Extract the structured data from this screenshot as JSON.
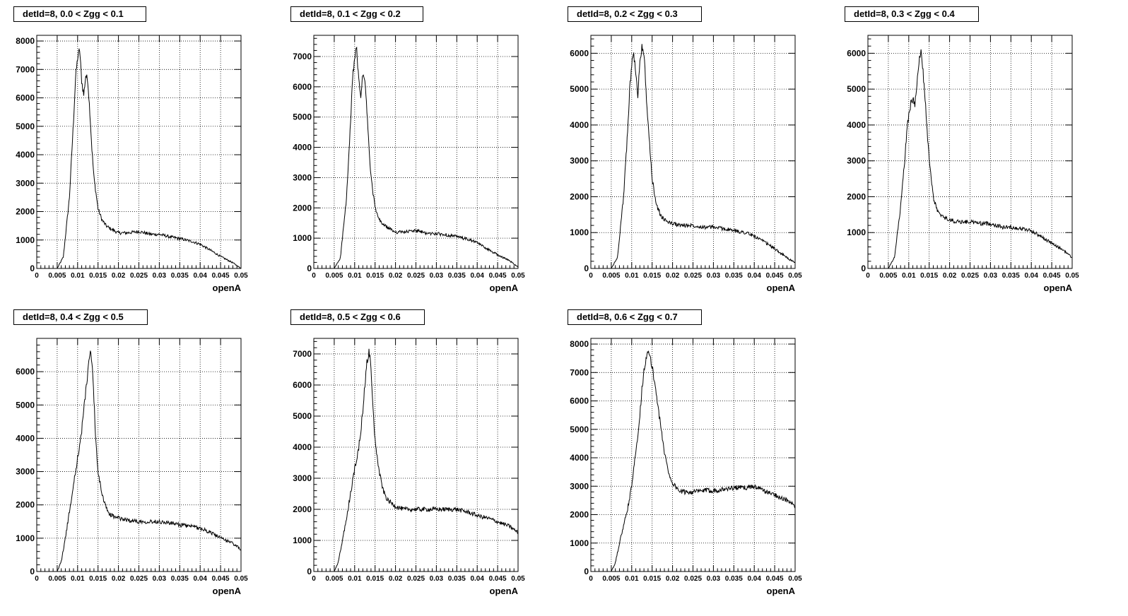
{
  "chart_data": [
    {
      "type": "line",
      "title": "detId=8, 0.0 < Zgg < 0.1",
      "xlabel": "openA",
      "xlim": [
        0,
        0.05
      ],
      "ylim": [
        0,
        8200
      ],
      "xticks": [
        "0",
        "0.005",
        "0.01",
        "0.015",
        "0.02",
        "0.025",
        "0.03",
        "0.035",
        "0.04",
        "0.045",
        "0.05"
      ],
      "yticks": [
        "0",
        "1000",
        "2000",
        "3000",
        "4000",
        "5000",
        "6000",
        "7000",
        "8000"
      ],
      "grid": true,
      "x": [
        0,
        0.005,
        0.0065,
        0.008,
        0.009,
        0.0095,
        0.01,
        0.0105,
        0.011,
        0.0115,
        0.012,
        0.0125,
        0.013,
        0.0135,
        0.014,
        0.015,
        0.016,
        0.017,
        0.018,
        0.02,
        0.022,
        0.025,
        0.028,
        0.03,
        0.033,
        0.035,
        0.038,
        0.04,
        0.043,
        0.045,
        0.048,
        0.05
      ],
      "y": [
        0,
        0,
        400,
        2500,
        5200,
        6700,
        7400,
        7700,
        6600,
        6100,
        6800,
        6600,
        5500,
        4200,
        3200,
        2100,
        1700,
        1500,
        1400,
        1250,
        1250,
        1300,
        1200,
        1200,
        1100,
        1050,
        950,
        850,
        600,
        420,
        200,
        0
      ]
    },
    {
      "type": "line",
      "title": "detId=8, 0.1 < Zgg < 0.2",
      "xlabel": "openA",
      "xlim": [
        0,
        0.05
      ],
      "ylim": [
        0,
        7700
      ],
      "xticks": [
        "0",
        "0.005",
        "0.01",
        "0.015",
        "0.02",
        "0.025",
        "0.03",
        "0.035",
        "0.04",
        "0.045",
        "0.05"
      ],
      "yticks": [
        "0",
        "1000",
        "2000",
        "3000",
        "4000",
        "5000",
        "6000",
        "7000"
      ],
      "grid": true,
      "x": [
        0,
        0.005,
        0.0065,
        0.008,
        0.009,
        0.0095,
        0.01,
        0.0105,
        0.011,
        0.0115,
        0.012,
        0.0125,
        0.013,
        0.0135,
        0.014,
        0.015,
        0.016,
        0.017,
        0.018,
        0.02,
        0.022,
        0.025,
        0.028,
        0.03,
        0.033,
        0.035,
        0.038,
        0.04,
        0.043,
        0.045,
        0.048,
        0.05
      ],
      "y": [
        0,
        0,
        350,
        2300,
        4800,
        6300,
        7000,
        7200,
        6200,
        5700,
        6400,
        6200,
        5200,
        4000,
        3000,
        2000,
        1600,
        1450,
        1350,
        1200,
        1200,
        1250,
        1150,
        1150,
        1100,
        1050,
        950,
        850,
        600,
        450,
        250,
        50
      ]
    },
    {
      "type": "line",
      "title": "detId=8, 0.2 < Zgg < 0.3",
      "xlabel": "openA",
      "xlim": [
        0,
        0.05
      ],
      "ylim": [
        0,
        6500
      ],
      "xticks": [
        "0",
        "0.005",
        "0.01",
        "0.015",
        "0.02",
        "0.025",
        "0.03",
        "0.035",
        "0.04",
        "0.045",
        "0.05"
      ],
      "yticks": [
        "0",
        "1000",
        "2000",
        "3000",
        "4000",
        "5000",
        "6000"
      ],
      "grid": true,
      "x": [
        0,
        0.005,
        0.0065,
        0.008,
        0.009,
        0.0095,
        0.01,
        0.0105,
        0.011,
        0.0115,
        0.012,
        0.0125,
        0.013,
        0.0135,
        0.014,
        0.015,
        0.016,
        0.017,
        0.018,
        0.02,
        0.022,
        0.025,
        0.028,
        0.03,
        0.033,
        0.035,
        0.038,
        0.04,
        0.043,
        0.045,
        0.048,
        0.05
      ],
      "y": [
        0,
        0,
        300,
        2000,
        3800,
        5000,
        5700,
        6000,
        5400,
        4800,
        5800,
        6200,
        6000,
        5000,
        4000,
        2500,
        1800,
        1500,
        1350,
        1250,
        1200,
        1200,
        1150,
        1150,
        1100,
        1050,
        1000,
        900,
        700,
        550,
        300,
        150
      ]
    },
    {
      "type": "line",
      "title": "detId=8, 0.3 < Zgg < 0.4",
      "xlabel": "openA",
      "xlim": [
        0,
        0.05
      ],
      "ylim": [
        0,
        6500
      ],
      "xticks": [
        "0",
        "0.005",
        "0.01",
        "0.015",
        "0.02",
        "0.025",
        "0.03",
        "0.035",
        "0.04",
        "0.045",
        "0.05"
      ],
      "yticks": [
        "0",
        "1000",
        "2000",
        "3000",
        "4000",
        "5000",
        "6000"
      ],
      "grid": true,
      "x": [
        0,
        0.005,
        0.0065,
        0.008,
        0.009,
        0.0095,
        0.01,
        0.0105,
        0.011,
        0.0115,
        0.012,
        0.0125,
        0.013,
        0.0135,
        0.014,
        0.015,
        0.016,
        0.017,
        0.018,
        0.02,
        0.022,
        0.025,
        0.028,
        0.03,
        0.033,
        0.035,
        0.038,
        0.04,
        0.043,
        0.045,
        0.048,
        0.05
      ],
      "y": [
        0,
        0,
        300,
        1700,
        3000,
        3800,
        4300,
        4600,
        4700,
        4600,
        5200,
        5800,
        6000,
        5500,
        4700,
        3000,
        2000,
        1600,
        1450,
        1350,
        1300,
        1300,
        1250,
        1250,
        1150,
        1150,
        1100,
        1050,
        850,
        700,
        500,
        300
      ]
    },
    {
      "type": "line",
      "title": "detId=8, 0.4 < Zgg < 0.5",
      "xlabel": "openA",
      "xlim": [
        0,
        0.05
      ],
      "ylim": [
        0,
        7000
      ],
      "xticks": [
        "0",
        "0.005",
        "0.01",
        "0.015",
        "0.02",
        "0.025",
        "0.03",
        "0.035",
        "0.04",
        "0.045",
        "0.05"
      ],
      "yticks": [
        "0",
        "1000",
        "2000",
        "3000",
        "4000",
        "5000",
        "6000"
      ],
      "grid": true,
      "x": [
        0,
        0.005,
        0.006,
        0.007,
        0.008,
        0.009,
        0.01,
        0.011,
        0.0115,
        0.012,
        0.0125,
        0.013,
        0.0135,
        0.014,
        0.0145,
        0.015,
        0.016,
        0.017,
        0.018,
        0.02,
        0.022,
        0.025,
        0.028,
        0.03,
        0.033,
        0.035,
        0.038,
        0.04,
        0.043,
        0.045,
        0.048,
        0.05
      ],
      "y": [
        0,
        0,
        300,
        1000,
        1800,
        2600,
        3400,
        4200,
        4900,
        5400,
        6000,
        6600,
        6300,
        5200,
        3800,
        3000,
        2300,
        1900,
        1700,
        1600,
        1550,
        1500,
        1500,
        1500,
        1450,
        1400,
        1350,
        1300,
        1150,
        1000,
        850,
        650
      ]
    },
    {
      "type": "line",
      "title": "detId=8, 0.5 < Zgg < 0.6",
      "xlabel": "openA",
      "xlim": [
        0,
        0.05
      ],
      "ylim": [
        0,
        7500
      ],
      "xticks": [
        "0",
        "0.005",
        "0.01",
        "0.015",
        "0.02",
        "0.025",
        "0.03",
        "0.035",
        "0.04",
        "0.045",
        "0.05"
      ],
      "yticks": [
        "0",
        "1000",
        "2000",
        "3000",
        "4000",
        "5000",
        "6000",
        "7000"
      ],
      "grid": true,
      "x": [
        0,
        0.005,
        0.006,
        0.007,
        0.008,
        0.009,
        0.01,
        0.011,
        0.0115,
        0.012,
        0.0125,
        0.013,
        0.0135,
        0.014,
        0.0145,
        0.015,
        0.016,
        0.017,
        0.018,
        0.02,
        0.022,
        0.025,
        0.028,
        0.03,
        0.033,
        0.035,
        0.038,
        0.04,
        0.043,
        0.045,
        0.048,
        0.05
      ],
      "y": [
        0,
        0,
        300,
        1000,
        1700,
        2500,
        3300,
        4000,
        4500,
        5200,
        6000,
        6700,
        7100,
        6600,
        5200,
        4200,
        3200,
        2600,
        2300,
        2100,
        2000,
        2000,
        2000,
        2000,
        2000,
        2000,
        1900,
        1800,
        1700,
        1600,
        1450,
        1250
      ]
    },
    {
      "type": "line",
      "title": "detId=8, 0.6 < Zgg < 0.7",
      "xlabel": "openA",
      "xlim": [
        0,
        0.05
      ],
      "ylim": [
        0,
        8200
      ],
      "xticks": [
        "0",
        "0.005",
        "0.01",
        "0.015",
        "0.02",
        "0.025",
        "0.03",
        "0.035",
        "0.04",
        "0.045",
        "0.05"
      ],
      "yticks": [
        "0",
        "1000",
        "2000",
        "3000",
        "4000",
        "5000",
        "6000",
        "7000",
        "8000"
      ],
      "grid": true,
      "x": [
        0,
        0.005,
        0.006,
        0.007,
        0.008,
        0.009,
        0.01,
        0.011,
        0.012,
        0.0125,
        0.013,
        0.0135,
        0.014,
        0.0145,
        0.015,
        0.016,
        0.017,
        0.018,
        0.019,
        0.02,
        0.022,
        0.025,
        0.028,
        0.03,
        0.033,
        0.035,
        0.038,
        0.04,
        0.043,
        0.045,
        0.048,
        0.05
      ],
      "y": [
        0,
        0,
        300,
        1000,
        1600,
        2200,
        3000,
        4200,
        5500,
        6400,
        7100,
        7500,
        7700,
        7500,
        7200,
        6300,
        5200,
        4200,
        3500,
        3100,
        2800,
        2800,
        2850,
        2850,
        2900,
        2950,
        2950,
        3000,
        2800,
        2700,
        2500,
        2300
      ]
    }
  ]
}
